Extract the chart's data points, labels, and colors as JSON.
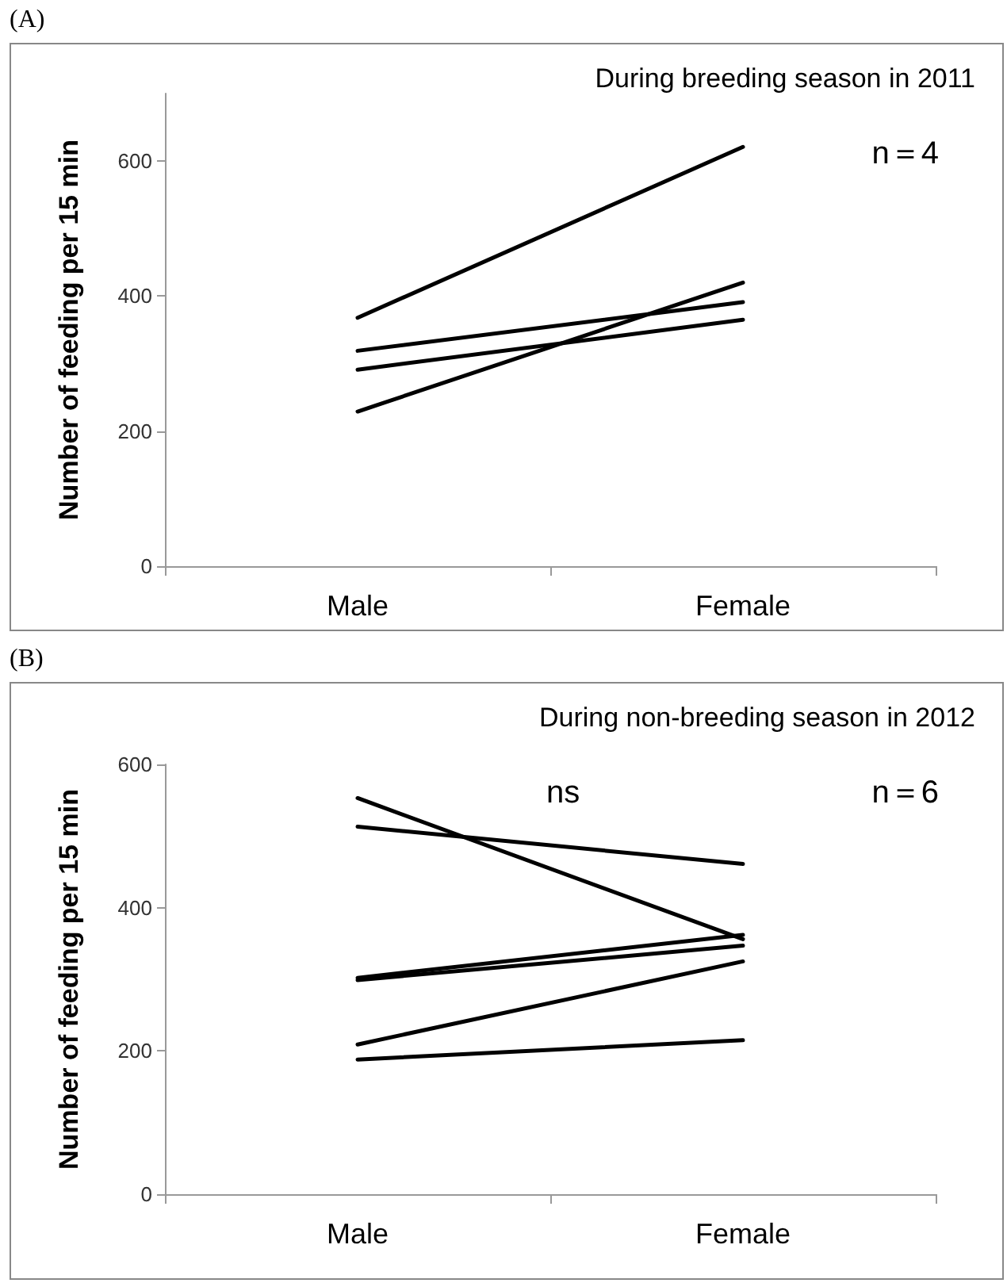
{
  "chart_data": [
    {
      "type": "line",
      "title": "During breeding season in 2011",
      "ylabel": "Number of feeding per 15 min",
      "annotations": [
        "(A)",
        "n＝4"
      ],
      "categories": [
        "Male",
        "Female"
      ],
      "ylim": [
        0,
        700
      ],
      "yticks": [
        0,
        200,
        400,
        600
      ],
      "grid": false,
      "marker": "none",
      "line_style": "solid",
      "series": [
        {
          "color": "#000000",
          "values": [
            368,
            621
          ]
        },
        {
          "color": "#000000",
          "values": [
            319,
            391
          ]
        },
        {
          "color": "#000000",
          "values": [
            291,
            365
          ]
        },
        {
          "color": "#000000",
          "values": [
            229,
            420
          ]
        }
      ]
    },
    {
      "type": "line",
      "title": "During non-breeding season in 2012",
      "ylabel": "Number of feeding per 15 min",
      "annotations": [
        "(B)",
        "ns",
        "n＝6"
      ],
      "categories": [
        "Male",
        "Female"
      ],
      "ylim": [
        0,
        600
      ],
      "yticks": [
        0,
        200,
        400,
        600
      ],
      "grid": false,
      "marker": "none",
      "line_style": "solid",
      "series": [
        {
          "color": "#000000",
          "values": [
            553,
            356
          ]
        },
        {
          "color": "#000000",
          "values": [
            513,
            461
          ]
        },
        {
          "color": "#000000",
          "values": [
            302,
            362
          ]
        },
        {
          "color": "#000000",
          "values": [
            299,
            347
          ]
        },
        {
          "color": "#000000",
          "values": [
            209,
            325
          ]
        },
        {
          "color": "#000000",
          "values": [
            188,
            215
          ]
        }
      ]
    }
  ]
}
